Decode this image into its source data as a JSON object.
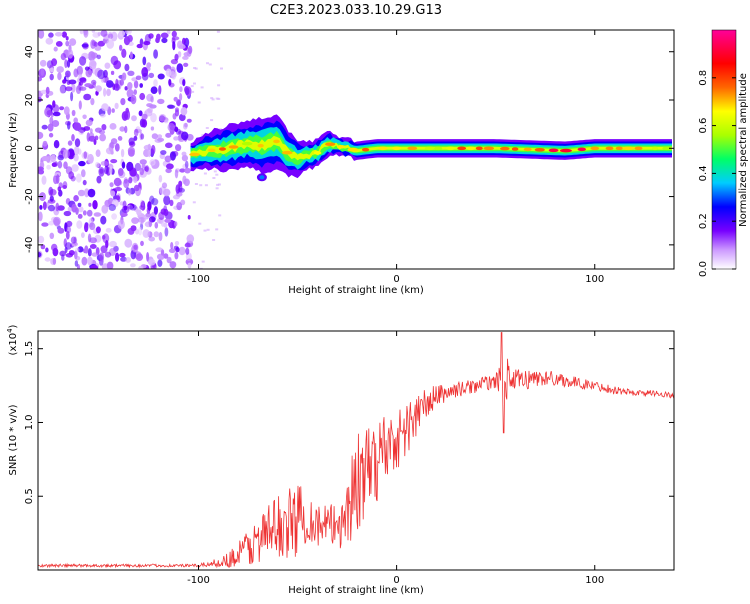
{
  "figure_title": "C2E3.2023.033.10.29.G13",
  "chart_data": [
    {
      "type": "heatmap",
      "title": "C2E3.2023.033.10.29.G13",
      "xlabel": "Height of straight line (km)",
      "ylabel": "Frequency (Hz)",
      "xlim": [
        -181,
        140
      ],
      "ylim": [
        -50,
        49
      ],
      "x_ticks": [
        -100,
        0,
        100
      ],
      "x_tick_labels": [
        "-100",
        "0",
        "100"
      ],
      "y_ticks": [
        -40,
        -20,
        0,
        20,
        40
      ],
      "y_tick_labels": [
        "-40",
        "-20",
        "0",
        "20",
        "40"
      ],
      "noise_region_x": [
        -181,
        -104
      ],
      "ridge": {
        "x": [
          -104,
          -95,
          -85,
          -75,
          -68,
          -60,
          -55,
          -50,
          -45,
          -40,
          -35,
          -30,
          -25,
          -20,
          -10,
          0,
          20,
          50,
          85,
          100,
          140
        ],
        "y": [
          -3,
          -1,
          0,
          2,
          1,
          3,
          -2,
          -4,
          -3,
          -2,
          2,
          1,
          0,
          -1,
          0,
          0,
          0,
          0,
          -1,
          0,
          0
        ],
        "width": [
          3,
          4,
          5,
          5,
          6,
          6,
          5,
          4,
          3,
          3,
          3,
          2,
          2,
          2,
          2,
          2,
          2,
          2,
          2,
          2,
          2
        ]
      },
      "colorbar": {
        "label": "Normalized spectral amplitude",
        "range": [
          0,
          1
        ],
        "ticks": [
          0.0,
          0.2,
          0.4,
          0.6,
          0.8
        ],
        "tick_labels": [
          "0.0",
          "0.2",
          "0.4",
          "0.6",
          "0.8"
        ],
        "colors": [
          "#ffffff",
          "#cc99ff",
          "#7700ff",
          "#0000ff",
          "#00ccff",
          "#00ff66",
          "#aaff00",
          "#ffff00",
          "#ff6600",
          "#ff0000",
          "#ff0099"
        ]
      }
    },
    {
      "type": "line",
      "xlabel": "Height of straight line (km)",
      "ylabel": "SNR (10 * v/v)",
      "y_scale_label": "(x10",
      "y_scale_exponent": "4",
      "y_scale_suffix": ")",
      "xlim": [
        -181,
        140
      ],
      "ylim": [
        0,
        1.62
      ],
      "x_ticks": [
        -100,
        0,
        100
      ],
      "x_tick_labels": [
        "-100",
        "0",
        "100"
      ],
      "y_ticks": [
        0.5,
        1.0,
        1.5
      ],
      "y_tick_labels": [
        "0.5",
        "1.0",
        "1.5"
      ],
      "series": [
        {
          "color": "#ee3333",
          "envelope": {
            "x": [
              -181,
              -100,
              -95,
              -90,
              -85,
              -80,
              -75,
              -70,
              -65,
              -60,
              -55,
              -50,
              -45,
              -40,
              -35,
              -30,
              -25,
              -20,
              -15,
              -10,
              -5,
              0,
              5,
              10,
              15,
              20,
              25,
              30,
              40,
              50,
              55,
              60,
              70,
              80,
              90,
              100,
              110,
              120,
              130,
              140
            ],
            "mean": [
              0.03,
              0.03,
              0.04,
              0.05,
              0.07,
              0.1,
              0.15,
              0.2,
              0.25,
              0.3,
              0.3,
              0.35,
              0.38,
              0.3,
              0.3,
              0.3,
              0.4,
              0.6,
              0.65,
              0.75,
              0.85,
              0.88,
              0.95,
              1.05,
              1.12,
              1.18,
              1.2,
              1.22,
              1.25,
              1.28,
              1.3,
              1.28,
              1.3,
              1.3,
              1.27,
              1.25,
              1.22,
              1.2,
              1.2,
              1.18
            ],
            "amp": [
              0.01,
              0.01,
              0.02,
              0.03,
              0.05,
              0.1,
              0.15,
              0.15,
              0.2,
              0.22,
              0.25,
              0.25,
              0.2,
              0.15,
              0.15,
              0.15,
              0.3,
              0.35,
              0.3,
              0.3,
              0.25,
              0.2,
              0.2,
              0.15,
              0.12,
              0.08,
              0.06,
              0.05,
              0.05,
              0.05,
              0.15,
              0.08,
              0.06,
              0.05,
              0.04,
              0.03,
              0.03,
              0.02,
              0.02,
              0.02
            ]
          },
          "spikes": [
            {
              "x": 53,
              "y": 1.61
            },
            {
              "x": 54,
              "y": 0.93
            }
          ]
        }
      ]
    }
  ]
}
